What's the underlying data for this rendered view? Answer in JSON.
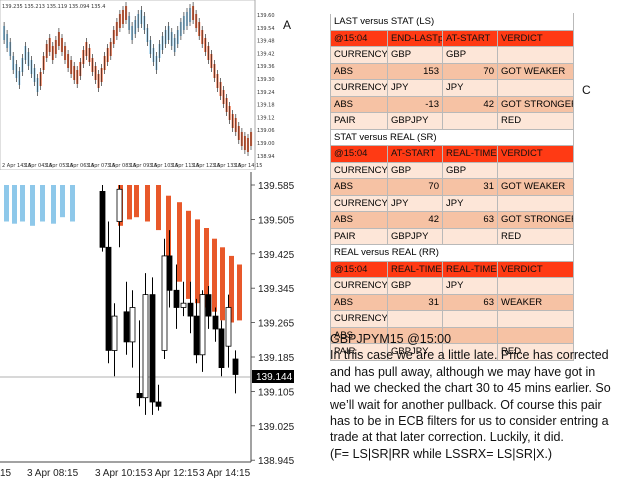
{
  "chart_a": {
    "label": "A",
    "top_text": "139.235 135.213 135.119 135.094 135.4",
    "price_labels": [
      "139.605",
      "139.545",
      "139.485",
      "139.425",
      "139.365",
      "139.305",
      "139.245",
      "139.185",
      "139.125",
      "139.065",
      "139.005",
      "138.945"
    ],
    "current_price": "139.144",
    "time_labels": [
      "2 Apr 14:15",
      "3 Apr 04:15",
      "3 Apr 05:15",
      "3 Apr 06:15",
      "3 Apr 07:15",
      "3 Apr 08:15",
      "3 Apr 09:15",
      "3 Apr 10:15",
      "3 Apr 11:15",
      "3 Apr 12:15",
      "3 Apr 13:15",
      "3 Apr 14:15"
    ]
  },
  "chart_b": {
    "price_labels": [
      "139.585",
      "139.505",
      "139.425",
      "139.345",
      "139.265",
      "139.185",
      "139.105",
      "139.025",
      "138.945"
    ],
    "current_price": "139.144",
    "time_labels": [
      "15",
      "3 Apr 08:15",
      "3 Apr 10:15",
      "3 Apr 12:15",
      "3 Apr 14:15"
    ]
  },
  "label_c": "C",
  "colors": {
    "bull": "#ffffff",
    "bear": "#000000",
    "ribbon_up": "#8ec8ea",
    "ribbon_down": "#e8582a",
    "header": "#ff3a14",
    "row_light": "#fde6d8",
    "row_dark": "#f6c2a4"
  },
  "tables": [
    {
      "title": "LAST versus STAT (LS)",
      "header": [
        "@15:04",
        "END-LASTp",
        "AT-START",
        "VERDICT"
      ],
      "rows": [
        {
          "style": "lt",
          "cells": [
            "CURRENCY",
            "GBP",
            "GBP",
            ""
          ]
        },
        {
          "style": "dk",
          "cells": [
            "ABS",
            "153",
            "70",
            "GOT WEAKER"
          ]
        },
        {
          "style": "lt",
          "cells": [
            "CURRENCY",
            "JPY",
            "JPY",
            ""
          ]
        },
        {
          "style": "dk",
          "cells": [
            "ABS",
            "-13",
            "42",
            "GOT STRONGER"
          ]
        },
        {
          "style": "lt",
          "cells": [
            "PAIR",
            "GBPJPY",
            "",
            "RED"
          ]
        }
      ]
    },
    {
      "title": "STAT versus REAL (SR)",
      "header": [
        "@15:04",
        "AT-START",
        "REAL-TIME",
        "VERDICT"
      ],
      "rows": [
        {
          "style": "lt",
          "cells": [
            "CURRENCY",
            "GBP",
            "GBP",
            ""
          ]
        },
        {
          "style": "dk",
          "cells": [
            "ABS",
            "70",
            "31",
            "GOT WEAKER"
          ]
        },
        {
          "style": "lt",
          "cells": [
            "CURRENCY",
            "JPY",
            "JPY",
            ""
          ]
        },
        {
          "style": "dk",
          "cells": [
            "ABS",
            "42",
            "63",
            "GOT STRONGER"
          ]
        },
        {
          "style": "lt",
          "cells": [
            "PAIR",
            "GBPJPY",
            "",
            "RED"
          ]
        }
      ]
    },
    {
      "title": "REAL versus REAL (RR)",
      "header": [
        "@15:04",
        "REAL-TIME",
        "REAL-TIME",
        "VERDICT"
      ],
      "rows": [
        {
          "style": "lt",
          "cells": [
            "CURRENCY",
            "GBP",
            "JPY",
            ""
          ]
        },
        {
          "style": "dk",
          "cells": [
            "ABS",
            "31",
            "63",
            "WEAKER"
          ]
        },
        {
          "style": "lt",
          "cells": [
            "CURRENCY",
            "",
            "",
            ""
          ]
        },
        {
          "style": "dk",
          "cells": [
            "ABS",
            "",
            "",
            ""
          ]
        },
        {
          "style": "lt",
          "cells": [
            "PAIR",
            "GBPJPY",
            "",
            "RED"
          ]
        }
      ]
    }
  ],
  "note": {
    "heading": "GBPJPYM15 @15:00",
    "lines": [
      "In this case we are a little late. Price has corrected",
      "and has pull away, although we may have got in",
      "had we checked the chart 30 to 45 mins earlier. So",
      "we’ll wait for another pullback. Of course this pair",
      "has to be in ECB filters for us to consider entring a",
      "trade at that later correction. Luckily, it did.",
      "(F= LS|SR|RR while LSSRX= LS|SR|X.)"
    ]
  }
}
